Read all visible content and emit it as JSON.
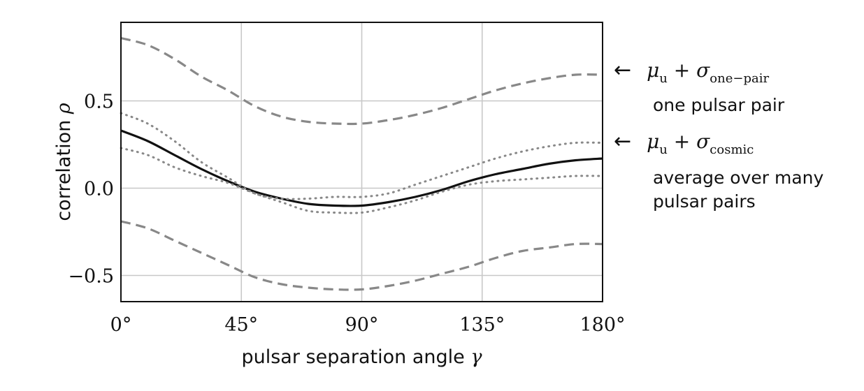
{
  "chart_data": {
    "type": "line",
    "xlabel_text": "pulsar separation angle",
    "xlabel_symbol": "γ",
    "ylabel_text": "correlation",
    "ylabel_symbol": "ρ",
    "xlim": [
      0,
      180
    ],
    "ylim": [
      -0.65,
      0.95
    ],
    "x_ticks": [
      0,
      45,
      90,
      135,
      180
    ],
    "x_tick_labels": [
      "0°",
      "45°",
      "90°",
      "135°",
      "180°"
    ],
    "y_ticks": [
      -0.5,
      0.0,
      0.5
    ],
    "y_tick_labels": [
      "−0.5",
      "0.0",
      "0.5"
    ],
    "grid": true,
    "x": [
      0,
      10,
      20,
      30,
      40,
      50,
      60,
      70,
      80,
      90,
      100,
      110,
      120,
      130,
      140,
      150,
      160,
      170,
      180
    ],
    "series": [
      {
        "style": "solid",
        "color": "#111111",
        "values": [
          0.33,
          0.27,
          0.19,
          0.11,
          0.04,
          -0.02,
          -0.06,
          -0.09,
          -0.1,
          -0.1,
          -0.08,
          -0.05,
          -0.01,
          0.04,
          0.08,
          0.11,
          0.14,
          0.16,
          0.17
        ]
      },
      {
        "style": "dashed",
        "color": "#888888",
        "values": [
          0.86,
          0.82,
          0.74,
          0.64,
          0.56,
          0.47,
          0.41,
          0.38,
          0.37,
          0.37,
          0.39,
          0.42,
          0.46,
          0.51,
          0.56,
          0.6,
          0.63,
          0.65,
          0.65
        ]
      },
      {
        "style": "dashed",
        "color": "#888888",
        "values": [
          -0.19,
          -0.23,
          -0.3,
          -0.37,
          -0.44,
          -0.51,
          -0.55,
          -0.57,
          -0.58,
          -0.58,
          -0.56,
          -0.53,
          -0.49,
          -0.45,
          -0.4,
          -0.36,
          -0.34,
          -0.32,
          -0.32
        ]
      },
      {
        "style": "dotted",
        "color": "#888888",
        "values": [
          0.43,
          0.37,
          0.27,
          0.15,
          0.06,
          -0.03,
          -0.06,
          -0.06,
          -0.05,
          -0.05,
          -0.03,
          0.02,
          0.07,
          0.12,
          0.17,
          0.21,
          0.24,
          0.26,
          0.26
        ]
      },
      {
        "style": "dotted",
        "color": "#888888",
        "values": [
          0.23,
          0.19,
          0.12,
          0.07,
          0.03,
          -0.03,
          -0.08,
          -0.13,
          -0.14,
          -0.14,
          -0.11,
          -0.07,
          -0.02,
          0.02,
          0.04,
          0.05,
          0.06,
          0.07,
          0.07
        ]
      }
    ]
  },
  "annotations": {
    "arrow": "←",
    "one_pair": {
      "mu": "μ",
      "mu_sub": "u",
      "plus": "+",
      "sigma": "σ",
      "sigma_sub": "one−pair",
      "caption": "one pulsar pair"
    },
    "cosmic": {
      "mu": "μ",
      "mu_sub": "u",
      "plus": "+",
      "sigma": "σ",
      "sigma_sub": "cosmic",
      "caption1": "average over many",
      "caption2": "pulsar pairs"
    }
  }
}
